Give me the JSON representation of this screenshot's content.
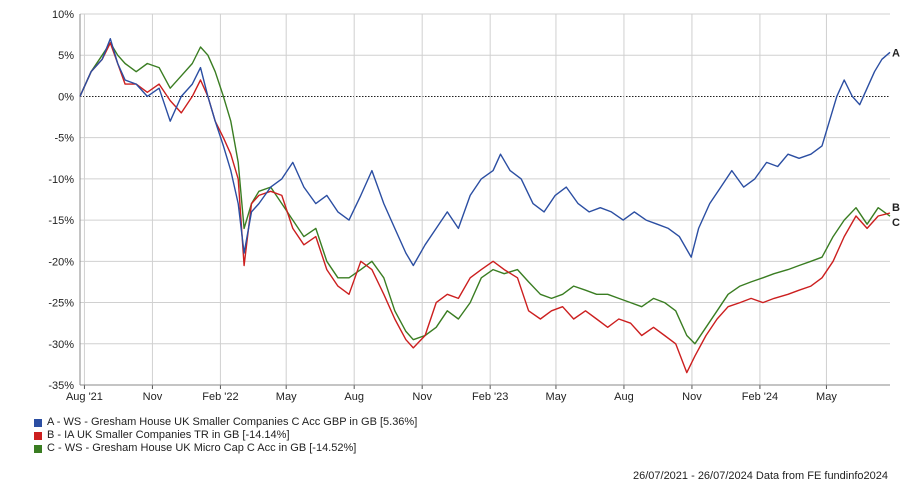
{
  "chart_data": {
    "type": "line",
    "title": "",
    "xlabel": "",
    "ylabel": "",
    "ylim": [
      -35,
      10
    ],
    "yticks": [
      10,
      5,
      0,
      -5,
      -10,
      -15,
      -20,
      -25,
      -30,
      -35
    ],
    "ytick_labels": [
      "10%",
      "5%",
      "0%",
      "-5%",
      "-10%",
      "-15%",
      "-20%",
      "-25%",
      "-30%",
      "-35%"
    ],
    "xlim": [
      "2021-07-26",
      "2024-07-26"
    ],
    "xticks": [
      {
        "date": "2021-08-01",
        "label": "Aug '21"
      },
      {
        "date": "2021-11-01",
        "label": "Nov"
      },
      {
        "date": "2022-02-01",
        "label": "Feb '22"
      },
      {
        "date": "2022-05-01",
        "label": "May"
      },
      {
        "date": "2022-08-01",
        "label": "Aug"
      },
      {
        "date": "2022-11-01",
        "label": "Nov"
      },
      {
        "date": "2023-02-01",
        "label": "Feb '23"
      },
      {
        "date": "2023-05-01",
        "label": "May"
      },
      {
        "date": "2023-08-01",
        "label": "Aug"
      },
      {
        "date": "2023-11-01",
        "label": "Nov"
      },
      {
        "date": "2024-02-01",
        "label": "Feb '24"
      },
      {
        "date": "2024-05-01",
        "label": "May"
      }
    ],
    "grid": true,
    "zero_line": "dotted",
    "legend_position": "bottom-left",
    "series": [
      {
        "name": "A - WS - Gresham House UK Smaller Companies C Acc GBP in GB [5.36%]",
        "end_label": "A",
        "color": "#2b4ea2",
        "points": [
          [
            "2021-07-26",
            0
          ],
          [
            "2021-08-10",
            3
          ],
          [
            "2021-08-25",
            4.5
          ],
          [
            "2021-09-05",
            7
          ],
          [
            "2021-09-15",
            4
          ],
          [
            "2021-09-25",
            2
          ],
          [
            "2021-10-10",
            1.5
          ],
          [
            "2021-10-25",
            0
          ],
          [
            "2021-11-10",
            1
          ],
          [
            "2021-11-25",
            -3
          ],
          [
            "2021-12-10",
            0
          ],
          [
            "2021-12-25",
            1.5
          ],
          [
            "2022-01-05",
            3.5
          ],
          [
            "2022-01-15",
            0
          ],
          [
            "2022-01-25",
            -3
          ],
          [
            "2022-02-05",
            -6
          ],
          [
            "2022-02-15",
            -9
          ],
          [
            "2022-02-25",
            -13
          ],
          [
            "2022-03-05",
            -19
          ],
          [
            "2022-03-15",
            -14
          ],
          [
            "2022-03-25",
            -13
          ],
          [
            "2022-04-10",
            -11
          ],
          [
            "2022-04-25",
            -10
          ],
          [
            "2022-05-10",
            -8
          ],
          [
            "2022-05-25",
            -11
          ],
          [
            "2022-06-10",
            -13
          ],
          [
            "2022-06-25",
            -12
          ],
          [
            "2022-07-10",
            -14
          ],
          [
            "2022-07-25",
            -15
          ],
          [
            "2022-08-10",
            -12
          ],
          [
            "2022-08-25",
            -9
          ],
          [
            "2022-09-10",
            -13
          ],
          [
            "2022-09-25",
            -16
          ],
          [
            "2022-10-10",
            -19
          ],
          [
            "2022-10-20",
            -20.5
          ],
          [
            "2022-11-05",
            -18
          ],
          [
            "2022-11-20",
            -16
          ],
          [
            "2022-12-05",
            -14
          ],
          [
            "2022-12-20",
            -16
          ],
          [
            "2023-01-05",
            -12
          ],
          [
            "2023-01-20",
            -10
          ],
          [
            "2023-02-05",
            -9
          ],
          [
            "2023-02-15",
            -7
          ],
          [
            "2023-02-28",
            -9
          ],
          [
            "2023-03-15",
            -10
          ],
          [
            "2023-03-31",
            -13
          ],
          [
            "2023-04-15",
            -14
          ],
          [
            "2023-04-30",
            -12
          ],
          [
            "2023-05-15",
            -11
          ],
          [
            "2023-05-31",
            -13
          ],
          [
            "2023-06-15",
            -14
          ],
          [
            "2023-06-30",
            -13.5
          ],
          [
            "2023-07-15",
            -14
          ],
          [
            "2023-07-31",
            -15
          ],
          [
            "2023-08-15",
            -14
          ],
          [
            "2023-08-31",
            -15
          ],
          [
            "2023-09-15",
            -15.5
          ],
          [
            "2023-09-30",
            -16
          ],
          [
            "2023-10-15",
            -17
          ],
          [
            "2023-10-31",
            -19.5
          ],
          [
            "2023-11-10",
            -16
          ],
          [
            "2023-11-25",
            -13
          ],
          [
            "2023-12-10",
            -11
          ],
          [
            "2023-12-25",
            -9
          ],
          [
            "2024-01-10",
            -11
          ],
          [
            "2024-01-25",
            -10
          ],
          [
            "2024-02-10",
            -8
          ],
          [
            "2024-02-25",
            -8.5
          ],
          [
            "2024-03-10",
            -7
          ],
          [
            "2024-03-25",
            -7.5
          ],
          [
            "2024-04-10",
            -7
          ],
          [
            "2024-04-25",
            -6
          ],
          [
            "2024-05-05",
            -3
          ],
          [
            "2024-05-15",
            0
          ],
          [
            "2024-05-25",
            2
          ],
          [
            "2024-06-05",
            0
          ],
          [
            "2024-06-15",
            -1
          ],
          [
            "2024-06-25",
            1
          ],
          [
            "2024-07-05",
            3
          ],
          [
            "2024-07-15",
            4.5
          ],
          [
            "2024-07-26",
            5.36
          ]
        ]
      },
      {
        "name": "B - IA UK Smaller Companies TR in GB [-14.14%]",
        "end_label": "B",
        "color": "#cc1f1f",
        "points": [
          [
            "2021-07-26",
            0
          ],
          [
            "2021-08-10",
            3
          ],
          [
            "2021-08-25",
            4.5
          ],
          [
            "2021-09-05",
            6.5
          ],
          [
            "2021-09-15",
            4
          ],
          [
            "2021-09-25",
            1.5
          ],
          [
            "2021-10-10",
            1.5
          ],
          [
            "2021-10-25",
            0.5
          ],
          [
            "2021-11-10",
            1.5
          ],
          [
            "2021-11-25",
            -0.5
          ],
          [
            "2021-12-10",
            -2
          ],
          [
            "2021-12-25",
            0
          ],
          [
            "2022-01-05",
            2
          ],
          [
            "2022-01-15",
            0
          ],
          [
            "2022-01-25",
            -3
          ],
          [
            "2022-02-05",
            -5
          ],
          [
            "2022-02-15",
            -7
          ],
          [
            "2022-02-25",
            -10
          ],
          [
            "2022-03-05",
            -20.5
          ],
          [
            "2022-03-15",
            -13
          ],
          [
            "2022-03-25",
            -12
          ],
          [
            "2022-04-10",
            -11.5
          ],
          [
            "2022-04-25",
            -12
          ],
          [
            "2022-05-10",
            -16
          ],
          [
            "2022-05-25",
            -18
          ],
          [
            "2022-06-10",
            -17
          ],
          [
            "2022-06-25",
            -21
          ],
          [
            "2022-07-10",
            -23
          ],
          [
            "2022-07-25",
            -24
          ],
          [
            "2022-08-10",
            -20
          ],
          [
            "2022-08-25",
            -21
          ],
          [
            "2022-09-10",
            -24
          ],
          [
            "2022-09-25",
            -27
          ],
          [
            "2022-10-10",
            -29.5
          ],
          [
            "2022-10-20",
            -30.5
          ],
          [
            "2022-11-05",
            -29
          ],
          [
            "2022-11-20",
            -25
          ],
          [
            "2022-12-05",
            -24
          ],
          [
            "2022-12-20",
            -24.5
          ],
          [
            "2023-01-05",
            -22
          ],
          [
            "2023-01-20",
            -21
          ],
          [
            "2023-02-05",
            -20
          ],
          [
            "2023-02-20",
            -21
          ],
          [
            "2023-03-10",
            -22
          ],
          [
            "2023-03-25",
            -26
          ],
          [
            "2023-04-10",
            -27
          ],
          [
            "2023-04-25",
            -26
          ],
          [
            "2023-05-10",
            -25.5
          ],
          [
            "2023-05-25",
            -27
          ],
          [
            "2023-06-10",
            -26
          ],
          [
            "2023-06-25",
            -27
          ],
          [
            "2023-07-10",
            -28
          ],
          [
            "2023-07-25",
            -27
          ],
          [
            "2023-08-10",
            -27.5
          ],
          [
            "2023-08-25",
            -29
          ],
          [
            "2023-09-10",
            -28
          ],
          [
            "2023-09-25",
            -29
          ],
          [
            "2023-10-10",
            -30
          ],
          [
            "2023-10-25",
            -33.5
          ],
          [
            "2023-11-05",
            -31.5
          ],
          [
            "2023-11-20",
            -29
          ],
          [
            "2023-12-05",
            -27
          ],
          [
            "2023-12-20",
            -25.5
          ],
          [
            "2024-01-05",
            -25
          ],
          [
            "2024-01-20",
            -24.5
          ],
          [
            "2024-02-05",
            -25
          ],
          [
            "2024-02-20",
            -24.5
          ],
          [
            "2024-03-10",
            -24
          ],
          [
            "2024-03-25",
            -23.5
          ],
          [
            "2024-04-10",
            -23
          ],
          [
            "2024-04-25",
            -22
          ],
          [
            "2024-05-10",
            -20
          ],
          [
            "2024-05-25",
            -17
          ],
          [
            "2024-06-10",
            -14.5
          ],
          [
            "2024-06-25",
            -16
          ],
          [
            "2024-07-10",
            -14.5
          ],
          [
            "2024-07-26",
            -14.14
          ]
        ]
      },
      {
        "name": "C - WS - Gresham House UK Micro Cap C Acc in GB [-14.52%]",
        "end_label": "C",
        "color": "#3a7d22",
        "points": [
          [
            "2021-07-26",
            0
          ],
          [
            "2021-08-10",
            3
          ],
          [
            "2021-08-25",
            5
          ],
          [
            "2021-09-05",
            6.5
          ],
          [
            "2021-09-15",
            5
          ],
          [
            "2021-09-25",
            4
          ],
          [
            "2021-10-10",
            3
          ],
          [
            "2021-10-25",
            4
          ],
          [
            "2021-11-10",
            3.5
          ],
          [
            "2021-11-25",
            1
          ],
          [
            "2021-12-10",
            2.5
          ],
          [
            "2021-12-25",
            4
          ],
          [
            "2022-01-05",
            6
          ],
          [
            "2022-01-15",
            5
          ],
          [
            "2022-01-25",
            3
          ],
          [
            "2022-02-05",
            0
          ],
          [
            "2022-02-15",
            -3
          ],
          [
            "2022-02-25",
            -8
          ],
          [
            "2022-03-05",
            -16
          ],
          [
            "2022-03-15",
            -13
          ],
          [
            "2022-03-25",
            -11.5
          ],
          [
            "2022-04-10",
            -11
          ],
          [
            "2022-04-25",
            -13
          ],
          [
            "2022-05-10",
            -15
          ],
          [
            "2022-05-25",
            -17
          ],
          [
            "2022-06-10",
            -16
          ],
          [
            "2022-06-25",
            -20
          ],
          [
            "2022-07-10",
            -22
          ],
          [
            "2022-07-25",
            -22
          ],
          [
            "2022-08-10",
            -21
          ],
          [
            "2022-08-25",
            -20
          ],
          [
            "2022-09-10",
            -22
          ],
          [
            "2022-09-25",
            -26
          ],
          [
            "2022-10-10",
            -28.5
          ],
          [
            "2022-10-20",
            -29.5
          ],
          [
            "2022-11-05",
            -29
          ],
          [
            "2022-11-20",
            -28
          ],
          [
            "2022-12-05",
            -26
          ],
          [
            "2022-12-20",
            -27
          ],
          [
            "2023-01-05",
            -25
          ],
          [
            "2023-01-20",
            -22
          ],
          [
            "2023-02-05",
            -21
          ],
          [
            "2023-02-20",
            -21.5
          ],
          [
            "2023-03-10",
            -21
          ],
          [
            "2023-03-25",
            -22.5
          ],
          [
            "2023-04-10",
            -24
          ],
          [
            "2023-04-25",
            -24.5
          ],
          [
            "2023-05-10",
            -24
          ],
          [
            "2023-05-25",
            -23
          ],
          [
            "2023-06-10",
            -23.5
          ],
          [
            "2023-06-25",
            -24
          ],
          [
            "2023-07-10",
            -24
          ],
          [
            "2023-07-25",
            -24.5
          ],
          [
            "2023-08-10",
            -25
          ],
          [
            "2023-08-25",
            -25.5
          ],
          [
            "2023-09-10",
            -24.5
          ],
          [
            "2023-09-25",
            -25
          ],
          [
            "2023-10-10",
            -26
          ],
          [
            "2023-10-25",
            -29
          ],
          [
            "2023-11-05",
            -30
          ],
          [
            "2023-11-20",
            -28
          ],
          [
            "2023-12-05",
            -26
          ],
          [
            "2023-12-20",
            -24
          ],
          [
            "2024-01-05",
            -23
          ],
          [
            "2024-01-20",
            -22.5
          ],
          [
            "2024-02-05",
            -22
          ],
          [
            "2024-02-20",
            -21.5
          ],
          [
            "2024-03-10",
            -21
          ],
          [
            "2024-03-25",
            -20.5
          ],
          [
            "2024-04-10",
            -20
          ],
          [
            "2024-04-25",
            -19.5
          ],
          [
            "2024-05-10",
            -17
          ],
          [
            "2024-05-25",
            -15
          ],
          [
            "2024-06-10",
            -13.5
          ],
          [
            "2024-06-25",
            -15.5
          ],
          [
            "2024-07-10",
            -13.5
          ],
          [
            "2024-07-26",
            -14.52
          ]
        ]
      }
    ]
  },
  "footer": "26/07/2021 - 26/07/2024 Data from FE fundinfo2024"
}
